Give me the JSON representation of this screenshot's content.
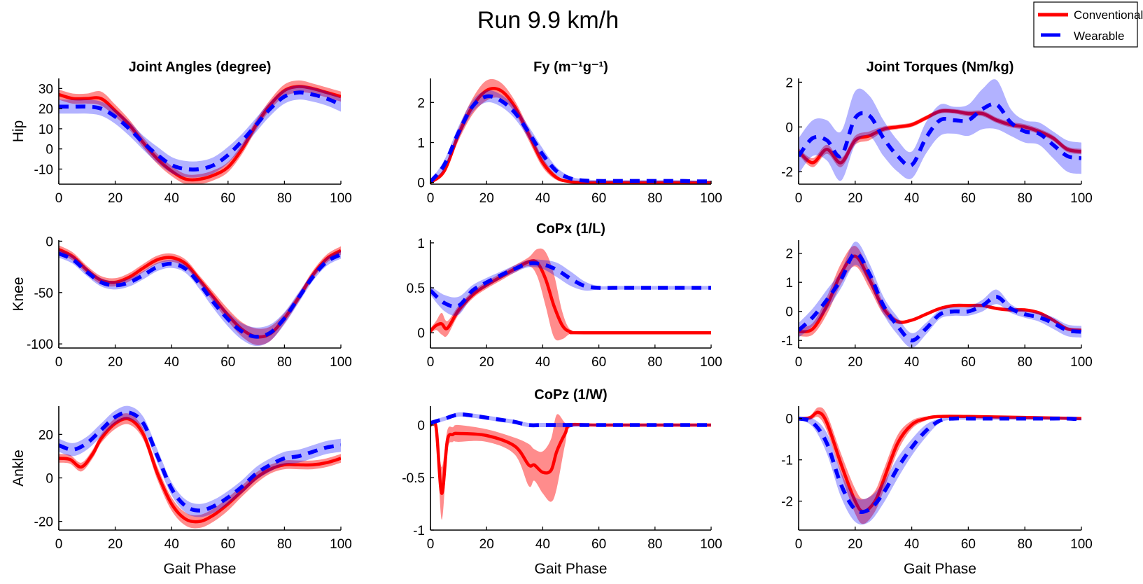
{
  "title": "Run 9.9 km/h",
  "legend": {
    "placement": "top-right",
    "items": [
      {
        "label": "Conventional",
        "color": "#ff0000",
        "style": "solid"
      },
      {
        "label": "Wearable",
        "color": "#0000ff",
        "style": "dashed"
      }
    ]
  },
  "chart_data": [
    {
      "type": "line",
      "title": "Joint Angles (degree)",
      "ylabel": "Hip",
      "xlabel": "",
      "xlim": [
        0,
        100
      ],
      "ylim": [
        -17.5,
        35
      ],
      "xticks": [
        0,
        20,
        40,
        60,
        80,
        100
      ],
      "yticks": [
        -10,
        0,
        10,
        20,
        30
      ],
      "series": [
        {
          "name": "Conventional",
          "y": [
            27,
            25,
            25,
            25,
            19,
            12,
            3,
            -5,
            -11,
            -15,
            -15,
            -13,
            -9,
            0,
            12,
            22,
            29,
            31,
            30,
            28,
            26
          ],
          "sd": [
            2.5,
            2.5,
            2.5,
            3.5,
            3,
            2.5,
            2.5,
            2.5,
            2.5,
            2.5,
            2.5,
            2.5,
            2.5,
            2.5,
            2.5,
            2.5,
            3,
            3,
            2.5,
            2.5,
            2.5
          ]
        },
        {
          "name": "Wearable",
          "y": [
            21,
            21,
            21,
            20,
            16,
            10,
            3,
            -3,
            -8,
            -10,
            -10,
            -8,
            -3,
            4,
            12,
            20,
            26,
            28,
            27,
            25,
            22
          ],
          "sd": [
            3.5,
            3.5,
            3.5,
            3.5,
            3.5,
            3.5,
            3.5,
            4,
            4,
            4,
            4,
            4,
            4,
            3.5,
            3.5,
            3.5,
            3.5,
            3.5,
            3.5,
            3.5,
            3.5
          ]
        }
      ]
    },
    {
      "type": "line",
      "title": "Fy (m⁻¹g⁻¹)",
      "ylabel": "",
      "xlabel": "",
      "xlim": [
        0,
        100
      ],
      "ylim": [
        -0.04,
        2.6
      ],
      "xticks": [
        0,
        20,
        40,
        60,
        80,
        100
      ],
      "yticks": [
        0,
        1,
        2
      ],
      "series": [
        {
          "name": "Conventional",
          "y": [
            0,
            0.3,
            1.2,
            1.9,
            2.3,
            2.3,
            1.9,
            1.2,
            0.5,
            0.12,
            0.02,
            0,
            0,
            0,
            0,
            0,
            0,
            0,
            0,
            0,
            0
          ],
          "sd": [
            0.02,
            0.08,
            0.15,
            0.2,
            0.25,
            0.2,
            0.15,
            0.15,
            0.12,
            0.06,
            0.02,
            0.01,
            0.01,
            0.01,
            0.01,
            0.01,
            0.01,
            0.01,
            0.01,
            0.01,
            0.01
          ]
        },
        {
          "name": "Wearable",
          "y": [
            0.02,
            0.45,
            1.25,
            1.9,
            2.15,
            2.05,
            1.75,
            1.25,
            0.7,
            0.28,
            0.1,
            0.05,
            0.04,
            0.04,
            0.04,
            0.04,
            0.04,
            0.04,
            0.04,
            0.03,
            0.03
          ],
          "sd": [
            0.03,
            0.12,
            0.15,
            0.15,
            0.15,
            0.15,
            0.15,
            0.15,
            0.15,
            0.1,
            0.05,
            0.03,
            0.02,
            0.02,
            0.02,
            0.02,
            0.02,
            0.02,
            0.02,
            0.02,
            0.02
          ]
        }
      ]
    },
    {
      "type": "line",
      "title": "Joint Torques (Nm/kg)",
      "ylabel": "",
      "xlabel": "",
      "xlim": [
        0,
        100
      ],
      "ylim": [
        -2.56,
        2.17
      ],
      "xticks": [
        0,
        20,
        40,
        60,
        80,
        100
      ],
      "yticks": [
        -2,
        0,
        2
      ],
      "series": [
        {
          "name": "Conventional",
          "y": [
            -1.1,
            -1.6,
            -1.0,
            -1.6,
            -0.6,
            -0.4,
            -0.1,
            0,
            0.1,
            0.4,
            0.7,
            0.7,
            0.6,
            0.6,
            0.3,
            0.1,
            0,
            -0.2,
            -0.5,
            -1.0,
            -1.1
          ],
          "sd": [
            0.15,
            0.2,
            0.2,
            0.2,
            0.2,
            0.2,
            0.12,
            0.1,
            0.1,
            0.1,
            0.1,
            0.1,
            0.12,
            0.12,
            0.12,
            0.12,
            0.12,
            0.12,
            0.12,
            0.12,
            0.12
          ]
        },
        {
          "name": "Wearable",
          "y": [
            -1.3,
            -0.5,
            -0.6,
            -1.3,
            0.4,
            0.5,
            -0.5,
            -1.3,
            -1.7,
            -0.5,
            0.3,
            0.3,
            0.3,
            0.8,
            1.0,
            0.2,
            -0.2,
            -0.3,
            -0.8,
            -1.3,
            -1.4
          ],
          "sd": [
            0.8,
            0.8,
            0.9,
            1.1,
            1.2,
            0.9,
            0.8,
            0.7,
            0.6,
            0.7,
            0.7,
            0.6,
            0.7,
            0.9,
            1.1,
            0.6,
            0.5,
            0.5,
            0.6,
            0.7,
            0.7
          ]
        }
      ]
    },
    {
      "type": "line",
      "title": "",
      "ylabel": "Knee",
      "xlabel": "",
      "xlim": [
        0,
        100
      ],
      "ylim": [
        -104,
        1
      ],
      "xticks": [
        0,
        20,
        40,
        60,
        80,
        100
      ],
      "yticks": [
        -100,
        -50,
        0
      ],
      "series": [
        {
          "name": "Conventional",
          "y": [
            -8,
            -15,
            -28,
            -38,
            -40,
            -35,
            -26,
            -18,
            -16,
            -22,
            -38,
            -55,
            -72,
            -86,
            -93,
            -90,
            -75,
            -55,
            -33,
            -17,
            -9
          ],
          "sd": [
            4,
            4,
            4,
            4,
            4,
            4,
            4,
            4,
            4,
            4,
            4,
            5,
            6,
            7,
            8,
            7,
            5,
            4,
            4,
            4,
            4
          ]
        },
        {
          "name": "Wearable",
          "y": [
            -12,
            -18,
            -30,
            -40,
            -43,
            -40,
            -33,
            -25,
            -22,
            -27,
            -42,
            -60,
            -76,
            -88,
            -93,
            -89,
            -75,
            -55,
            -35,
            -20,
            -13
          ],
          "sd": [
            4,
            4,
            4,
            4,
            4,
            4,
            4,
            4,
            4,
            4,
            5,
            6,
            7,
            8,
            9,
            8,
            6,
            5,
            4,
            4,
            4
          ]
        }
      ]
    },
    {
      "type": "line",
      "title": "CoPx (1/L)",
      "ylabel": "",
      "xlabel": "",
      "xlim": [
        0,
        100
      ],
      "ylim": [
        -0.17,
        1.03
      ],
      "xticks": [
        0,
        20,
        40,
        60,
        80,
        100
      ],
      "yticks": [
        0,
        0.5,
        1
      ],
      "series": [
        {
          "name": "Conventional",
          "x": [
            0,
            2,
            4,
            6,
            10,
            15,
            20,
            25,
            30,
            35,
            38,
            41,
            44,
            47,
            50,
            55,
            100
          ],
          "y": [
            0.02,
            0.08,
            0.1,
            0.05,
            0.25,
            0.42,
            0.53,
            0.62,
            0.71,
            0.79,
            0.78,
            0.6,
            0.3,
            0.08,
            0.01,
            0,
            0
          ],
          "sd": [
            0.03,
            0.05,
            0.12,
            0.08,
            0.05,
            0.04,
            0.04,
            0.04,
            0.04,
            0.05,
            0.15,
            0.3,
            0.35,
            0.15,
            0.02,
            0.01,
            0.01
          ]
        },
        {
          "name": "Wearable",
          "y": [
            0.47,
            0.33,
            0.3,
            0.47,
            0.56,
            0.64,
            0.71,
            0.77,
            0.76,
            0.7,
            0.6,
            0.52,
            0.5,
            0.5,
            0.5,
            0.5,
            0.5,
            0.5,
            0.5,
            0.5,
            0.5
          ],
          "sd": [
            0.05,
            0.09,
            0.1,
            0.06,
            0.05,
            0.04,
            0.04,
            0.04,
            0.05,
            0.08,
            0.08,
            0.05,
            0.02,
            0.02,
            0.02,
            0.02,
            0.02,
            0.02,
            0.02,
            0.02,
            0.02
          ]
        }
      ]
    },
    {
      "type": "line",
      "title": "",
      "ylabel": "",
      "xlabel": "",
      "xlim": [
        0,
        100
      ],
      "ylim": [
        -1.26,
        2.45
      ],
      "xticks": [
        0,
        20,
        40,
        60,
        80,
        100
      ],
      "yticks": [
        -1,
        0,
        1,
        2
      ],
      "series": [
        {
          "name": "Conventional",
          "y": [
            -0.7,
            -0.6,
            0.2,
            1.3,
            1.9,
            1.1,
            0.1,
            -0.35,
            -0.3,
            -0.1,
            0.1,
            0.2,
            0.2,
            0.2,
            0.1,
            0.05,
            0.05,
            -0.05,
            -0.3,
            -0.6,
            -0.65
          ],
          "sd": [
            0.15,
            0.2,
            0.3,
            0.35,
            0.35,
            0.3,
            0.2,
            0.08,
            0.06,
            0.06,
            0.06,
            0.06,
            0.06,
            0.06,
            0.06,
            0.06,
            0.06,
            0.06,
            0.06,
            0.06,
            0.06
          ]
        },
        {
          "name": "Wearable",
          "y": [
            -0.65,
            -0.2,
            0.4,
            1.1,
            2.0,
            1.3,
            0.2,
            -0.5,
            -1.0,
            -0.6,
            -0.1,
            0.0,
            0.0,
            0.2,
            0.5,
            0.1,
            -0.1,
            -0.2,
            -0.4,
            -0.65,
            -0.7
          ],
          "sd": [
            0.25,
            0.3,
            0.35,
            0.3,
            0.4,
            0.35,
            0.3,
            0.3,
            0.25,
            0.2,
            0.15,
            0.15,
            0.15,
            0.2,
            0.25,
            0.15,
            0.12,
            0.15,
            0.2,
            0.2,
            0.2
          ]
        }
      ]
    },
    {
      "type": "line",
      "title": "",
      "ylabel": "Ankle",
      "xlabel": "Gait Phase",
      "xlim": [
        0,
        100
      ],
      "ylim": [
        -24,
        33
      ],
      "xticks": [
        0,
        20,
        40,
        60,
        80,
        100
      ],
      "yticks": [
        -20,
        0,
        20
      ],
      "series": [
        {
          "name": "Conventional",
          "x": [
            0,
            4,
            8,
            12,
            15,
            20,
            25,
            30,
            35,
            40,
            45,
            50,
            55,
            60,
            65,
            70,
            75,
            80,
            85,
            90,
            95,
            100
          ],
          "y": [
            9,
            8.5,
            5,
            11,
            18,
            25,
            27,
            20,
            2,
            -12,
            -19,
            -20,
            -17,
            -12,
            -6,
            0,
            4,
            6,
            6,
            6,
            7,
            9
          ],
          "sd": [
            2,
            2,
            2,
            2,
            2,
            2.5,
            2.5,
            2.5,
            3,
            3,
            3,
            3,
            3,
            3,
            2.5,
            2.5,
            2,
            2,
            2,
            2,
            2,
            2
          ]
        },
        {
          "name": "Wearable",
          "y": [
            15,
            13,
            16,
            22,
            28,
            30,
            25,
            10,
            -5,
            -13,
            -15,
            -13,
            -9,
            -4,
            2,
            6,
            9,
            10,
            12,
            14,
            15
          ],
          "sd": [
            3,
            3,
            3,
            3,
            3,
            3,
            3,
            3,
            3,
            3,
            3,
            3,
            3,
            3,
            3,
            3,
            3,
            3,
            3,
            3,
            3
          ]
        }
      ]
    },
    {
      "type": "line",
      "title": "CoPz (1/W)",
      "ylabel": "",
      "xlabel": "Gait Phase",
      "xlim": [
        0,
        100
      ],
      "ylim": [
        -1,
        0.18
      ],
      "xticks": [
        0,
        20,
        40,
        60,
        80,
        100
      ],
      "yticks": [
        -1,
        -0.5,
        0
      ],
      "series": [
        {
          "name": "Conventional",
          "x": [
            0,
            2,
            4,
            6,
            8,
            10,
            20,
            30,
            35,
            37,
            40,
            43,
            45,
            48,
            50,
            60,
            100
          ],
          "y": [
            0,
            -0.02,
            -0.65,
            -0.15,
            -0.09,
            -0.08,
            -0.1,
            -0.2,
            -0.38,
            -0.38,
            -0.45,
            -0.43,
            -0.25,
            -0.08,
            0,
            0,
            0
          ],
          "sd": [
            0,
            0.02,
            0.25,
            0.1,
            0.07,
            0.08,
            0.06,
            0.08,
            0.2,
            0.15,
            0.2,
            0.3,
            0.35,
            0.1,
            0.02,
            0.005,
            0.005
          ]
        },
        {
          "name": "Wearable",
          "y": [
            0.02,
            0.06,
            0.1,
            0.09,
            0.07,
            0.05,
            0.03,
            0,
            0,
            0,
            0,
            0,
            0,
            0,
            0,
            0,
            0,
            0,
            0,
            0,
            0
          ],
          "sd": [
            0.02,
            0.02,
            0.02,
            0.02,
            0.02,
            0.02,
            0.02,
            0.02,
            0.02,
            0.02,
            0.02,
            0.01,
            0.01,
            0.01,
            0.01,
            0.01,
            0.01,
            0.01,
            0.01,
            0.01,
            0.01
          ]
        }
      ]
    },
    {
      "type": "line",
      "title": "",
      "ylabel": "",
      "xlabel": "Gait Phase",
      "xlim": [
        0,
        100
      ],
      "ylim": [
        -2.7,
        0.3
      ],
      "xticks": [
        0,
        20,
        40,
        60,
        80,
        100
      ],
      "yticks": [
        -2,
        -1,
        0
      ],
      "series": [
        {
          "name": "Conventional",
          "x": [
            0,
            4,
            7,
            10,
            15,
            20,
            23,
            27,
            30,
            35,
            40,
            45,
            50,
            60,
            100
          ],
          "y": [
            0,
            0.02,
            0.15,
            -0.1,
            -1.1,
            -2.0,
            -2.25,
            -2.0,
            -1.5,
            -0.6,
            -0.15,
            0,
            0.05,
            0.05,
            0
          ],
          "sd": [
            0.02,
            0.05,
            0.12,
            0.2,
            0.25,
            0.3,
            0.3,
            0.25,
            0.25,
            0.2,
            0.1,
            0.05,
            0.03,
            0.03,
            0.02
          ]
        },
        {
          "name": "Wearable",
          "y": [
            0,
            -0.1,
            -0.6,
            -1.6,
            -2.2,
            -2.2,
            -1.8,
            -1.2,
            -0.7,
            -0.3,
            -0.05,
            0,
            0,
            0,
            0,
            0,
            0,
            0,
            0,
            0,
            -0.02
          ],
          "sd": [
            0.03,
            0.1,
            0.25,
            0.3,
            0.3,
            0.3,
            0.25,
            0.25,
            0.2,
            0.15,
            0.05,
            0.03,
            0.03,
            0.03,
            0.03,
            0.03,
            0.03,
            0.03,
            0.03,
            0.03,
            0.03
          ]
        }
      ]
    }
  ]
}
